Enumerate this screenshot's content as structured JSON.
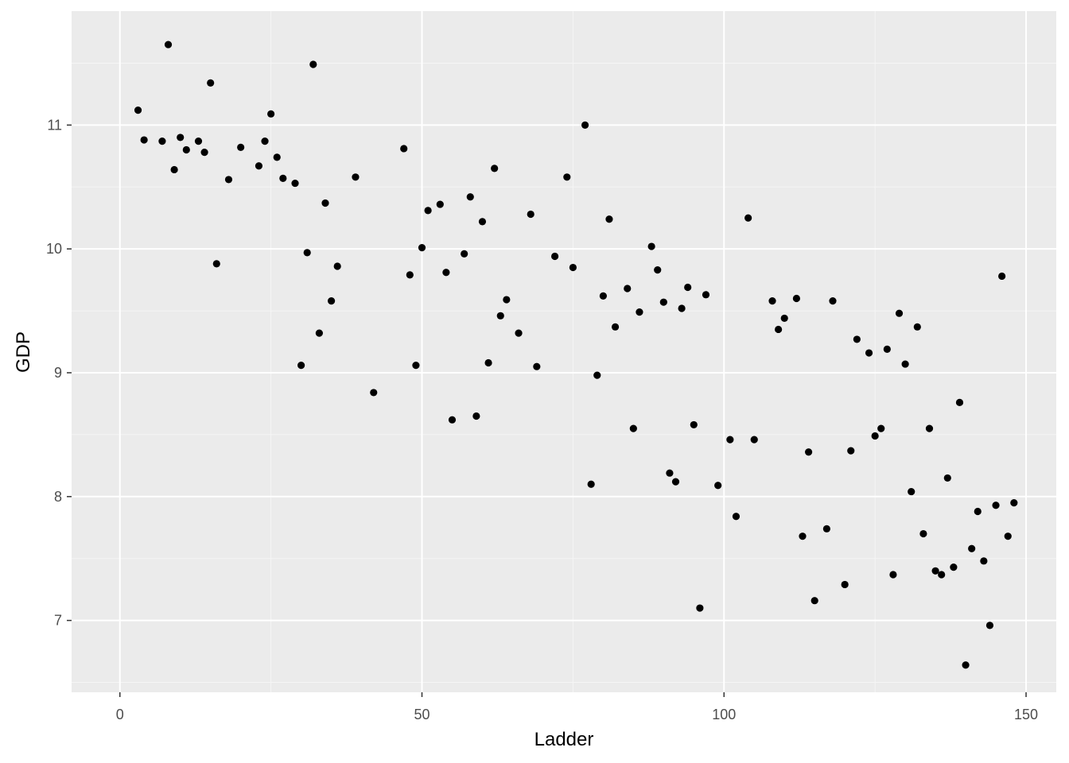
{
  "chart_data": {
    "type": "scatter",
    "xlabel": "Ladder",
    "ylabel": "GDP",
    "xlim": [
      -8,
      155
    ],
    "ylim": [
      6.42,
      11.92
    ],
    "x_ticks": [
      0,
      50,
      100,
      150
    ],
    "y_ticks": [
      7,
      8,
      9,
      10,
      11
    ],
    "grid": true,
    "colors": {
      "panel": "#ebebeb",
      "grid_major": "#ffffff",
      "grid_minor": "#f5f5f5",
      "point": "#000000",
      "tick_label": "#4d4d4d"
    },
    "points": [
      {
        "x": 3,
        "y": 11.12
      },
      {
        "x": 4,
        "y": 10.88
      },
      {
        "x": 7,
        "y": 10.87
      },
      {
        "x": 8,
        "y": 11.65
      },
      {
        "x": 9,
        "y": 10.64
      },
      {
        "x": 10,
        "y": 10.9
      },
      {
        "x": 11,
        "y": 10.8
      },
      {
        "x": 13,
        "y": 10.87
      },
      {
        "x": 14,
        "y": 10.78
      },
      {
        "x": 15,
        "y": 11.34
      },
      {
        "x": 16,
        "y": 9.88
      },
      {
        "x": 18,
        "y": 10.56
      },
      {
        "x": 20,
        "y": 10.82
      },
      {
        "x": 23,
        "y": 10.67
      },
      {
        "x": 24,
        "y": 10.87
      },
      {
        "x": 25,
        "y": 11.09
      },
      {
        "x": 26,
        "y": 10.74
      },
      {
        "x": 27,
        "y": 10.57
      },
      {
        "x": 29,
        "y": 10.53
      },
      {
        "x": 30,
        "y": 9.06
      },
      {
        "x": 31,
        "y": 9.97
      },
      {
        "x": 32,
        "y": 11.49
      },
      {
        "x": 33,
        "y": 9.32
      },
      {
        "x": 34,
        "y": 10.37
      },
      {
        "x": 35,
        "y": 9.58
      },
      {
        "x": 36,
        "y": 9.86
      },
      {
        "x": 39,
        "y": 10.58
      },
      {
        "x": 42,
        "y": 8.84
      },
      {
        "x": 47,
        "y": 10.81
      },
      {
        "x": 48,
        "y": 9.79
      },
      {
        "x": 49,
        "y": 9.06
      },
      {
        "x": 50,
        "y": 10.01
      },
      {
        "x": 51,
        "y": 10.31
      },
      {
        "x": 53,
        "y": 10.36
      },
      {
        "x": 54,
        "y": 9.81
      },
      {
        "x": 55,
        "y": 8.62
      },
      {
        "x": 57,
        "y": 9.96
      },
      {
        "x": 58,
        "y": 10.42
      },
      {
        "x": 59,
        "y": 8.65
      },
      {
        "x": 60,
        "y": 10.22
      },
      {
        "x": 61,
        "y": 9.08
      },
      {
        "x": 62,
        "y": 10.65
      },
      {
        "x": 63,
        "y": 9.46
      },
      {
        "x": 64,
        "y": 9.59
      },
      {
        "x": 66,
        "y": 9.32
      },
      {
        "x": 68,
        "y": 10.28
      },
      {
        "x": 69,
        "y": 9.05
      },
      {
        "x": 72,
        "y": 9.94
      },
      {
        "x": 74,
        "y": 10.58
      },
      {
        "x": 75,
        "y": 9.85
      },
      {
        "x": 77,
        "y": 11.0
      },
      {
        "x": 78,
        "y": 8.1
      },
      {
        "x": 79,
        "y": 8.98
      },
      {
        "x": 80,
        "y": 9.62
      },
      {
        "x": 81,
        "y": 10.24
      },
      {
        "x": 82,
        "y": 9.37
      },
      {
        "x": 84,
        "y": 9.68
      },
      {
        "x": 85,
        "y": 8.55
      },
      {
        "x": 86,
        "y": 9.49
      },
      {
        "x": 88,
        "y": 10.02
      },
      {
        "x": 89,
        "y": 9.83
      },
      {
        "x": 90,
        "y": 9.57
      },
      {
        "x": 91,
        "y": 8.19
      },
      {
        "x": 92,
        "y": 8.12
      },
      {
        "x": 93,
        "y": 9.52
      },
      {
        "x": 94,
        "y": 9.69
      },
      {
        "x": 95,
        "y": 8.58
      },
      {
        "x": 96,
        "y": 7.1
      },
      {
        "x": 97,
        "y": 9.63
      },
      {
        "x": 99,
        "y": 8.09
      },
      {
        "x": 101,
        "y": 8.46
      },
      {
        "x": 102,
        "y": 7.84
      },
      {
        "x": 104,
        "y": 10.25
      },
      {
        "x": 105,
        "y": 8.46
      },
      {
        "x": 108,
        "y": 9.58
      },
      {
        "x": 109,
        "y": 9.35
      },
      {
        "x": 110,
        "y": 9.44
      },
      {
        "x": 112,
        "y": 9.6
      },
      {
        "x": 113,
        "y": 7.68
      },
      {
        "x": 114,
        "y": 8.36
      },
      {
        "x": 115,
        "y": 7.16
      },
      {
        "x": 117,
        "y": 7.74
      },
      {
        "x": 118,
        "y": 9.58
      },
      {
        "x": 120,
        "y": 7.29
      },
      {
        "x": 121,
        "y": 8.37
      },
      {
        "x": 122,
        "y": 9.27
      },
      {
        "x": 124,
        "y": 9.16
      },
      {
        "x": 125,
        "y": 8.49
      },
      {
        "x": 126,
        "y": 8.55
      },
      {
        "x": 127,
        "y": 9.19
      },
      {
        "x": 128,
        "y": 7.37
      },
      {
        "x": 129,
        "y": 9.48
      },
      {
        "x": 130,
        "y": 9.07
      },
      {
        "x": 131,
        "y": 8.04
      },
      {
        "x": 132,
        "y": 9.37
      },
      {
        "x": 133,
        "y": 7.7
      },
      {
        "x": 134,
        "y": 8.55
      },
      {
        "x": 135,
        "y": 7.4
      },
      {
        "x": 136,
        "y": 7.37
      },
      {
        "x": 137,
        "y": 8.15
      },
      {
        "x": 138,
        "y": 7.43
      },
      {
        "x": 139,
        "y": 8.76
      },
      {
        "x": 140,
        "y": 6.64
      },
      {
        "x": 141,
        "y": 7.58
      },
      {
        "x": 142,
        "y": 7.88
      },
      {
        "x": 143,
        "y": 7.48
      },
      {
        "x": 144,
        "y": 6.96
      },
      {
        "x": 145,
        "y": 7.93
      },
      {
        "x": 146,
        "y": 9.78
      },
      {
        "x": 147,
        "y": 7.68
      },
      {
        "x": 148,
        "y": 7.95
      }
    ]
  }
}
